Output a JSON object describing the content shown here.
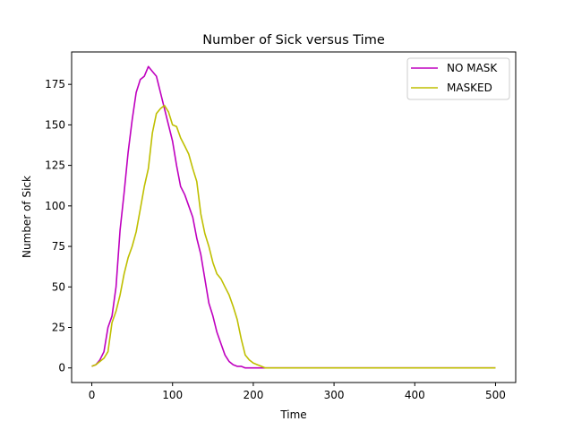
{
  "chart_data": {
    "type": "line",
    "title": "Number of Sick versus Time",
    "xlabel": "Time",
    "ylabel": "Number of Sick",
    "xlim": [
      -25,
      525
    ],
    "ylim": [
      -9,
      195
    ],
    "xticks": [
      0,
      100,
      200,
      300,
      400,
      500
    ],
    "yticks": [
      0,
      25,
      50,
      75,
      100,
      125,
      150,
      175
    ],
    "grid": false,
    "legend_position": "top-right",
    "series": [
      {
        "name": "NO MASK",
        "color": "#bf00bf",
        "x": [
          0,
          5,
          10,
          15,
          20,
          25,
          30,
          35,
          40,
          45,
          50,
          55,
          60,
          65,
          70,
          75,
          80,
          85,
          90,
          95,
          100,
          105,
          110,
          115,
          120,
          125,
          130,
          135,
          140,
          145,
          150,
          155,
          160,
          165,
          170,
          175,
          180,
          185,
          190,
          195,
          200,
          210,
          220,
          230,
          240,
          260,
          300,
          350,
          400,
          450,
          500
        ],
        "y": [
          1,
          2,
          5,
          10,
          25,
          32,
          50,
          85,
          108,
          133,
          153,
          170,
          178,
          180,
          186,
          183,
          180,
          170,
          160,
          150,
          140,
          125,
          112,
          107,
          100,
          93,
          80,
          70,
          55,
          40,
          32,
          22,
          15,
          8,
          4,
          2,
          1,
          1,
          0,
          0,
          0,
          0,
          0,
          0,
          0,
          0,
          0,
          0,
          0,
          0,
          0
        ]
      },
      {
        "name": "MASKED",
        "color": "#bfbf00",
        "x": [
          0,
          5,
          10,
          15,
          20,
          25,
          30,
          35,
          40,
          45,
          50,
          55,
          60,
          65,
          70,
          75,
          80,
          85,
          90,
          95,
          100,
          105,
          110,
          115,
          120,
          125,
          130,
          135,
          140,
          145,
          150,
          155,
          160,
          165,
          170,
          175,
          180,
          185,
          190,
          195,
          200,
          205,
          210,
          215,
          220,
          225,
          230,
          240,
          260,
          300,
          350,
          400,
          450,
          500
        ],
        "y": [
          1,
          2,
          4,
          6,
          10,
          28,
          35,
          45,
          58,
          68,
          75,
          84,
          98,
          112,
          123,
          145,
          157,
          160,
          162,
          158,
          150,
          149,
          142,
          137,
          132,
          123,
          115,
          95,
          83,
          75,
          65,
          58,
          55,
          50,
          45,
          38,
          30,
          18,
          8,
          5,
          3,
          2,
          1,
          0,
          0,
          0,
          0,
          0,
          0,
          0,
          0,
          0,
          0,
          0
        ]
      }
    ]
  }
}
